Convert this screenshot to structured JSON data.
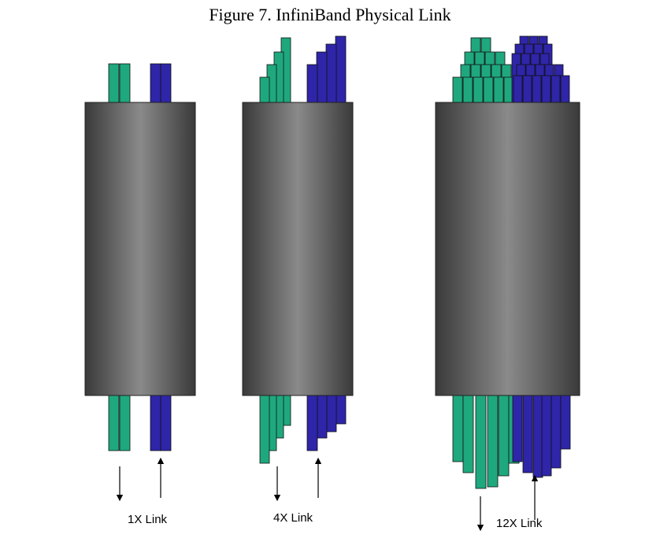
{
  "title": "Figure 7. InfiniBand Physical Link",
  "colors": {
    "transmit_fiber": "#1fa87e",
    "receive_fiber": "#2e25a8",
    "cable_dark": "#3a3a3a",
    "cable_light": "#8a8a8a",
    "arrow": "#000000"
  },
  "links": [
    {
      "label": "1X Link",
      "lanes_per_direction": 1
    },
    {
      "label": "4X Link",
      "lanes_per_direction": 4
    },
    {
      "label": "12X Link",
      "lanes_per_direction": 12
    }
  ]
}
